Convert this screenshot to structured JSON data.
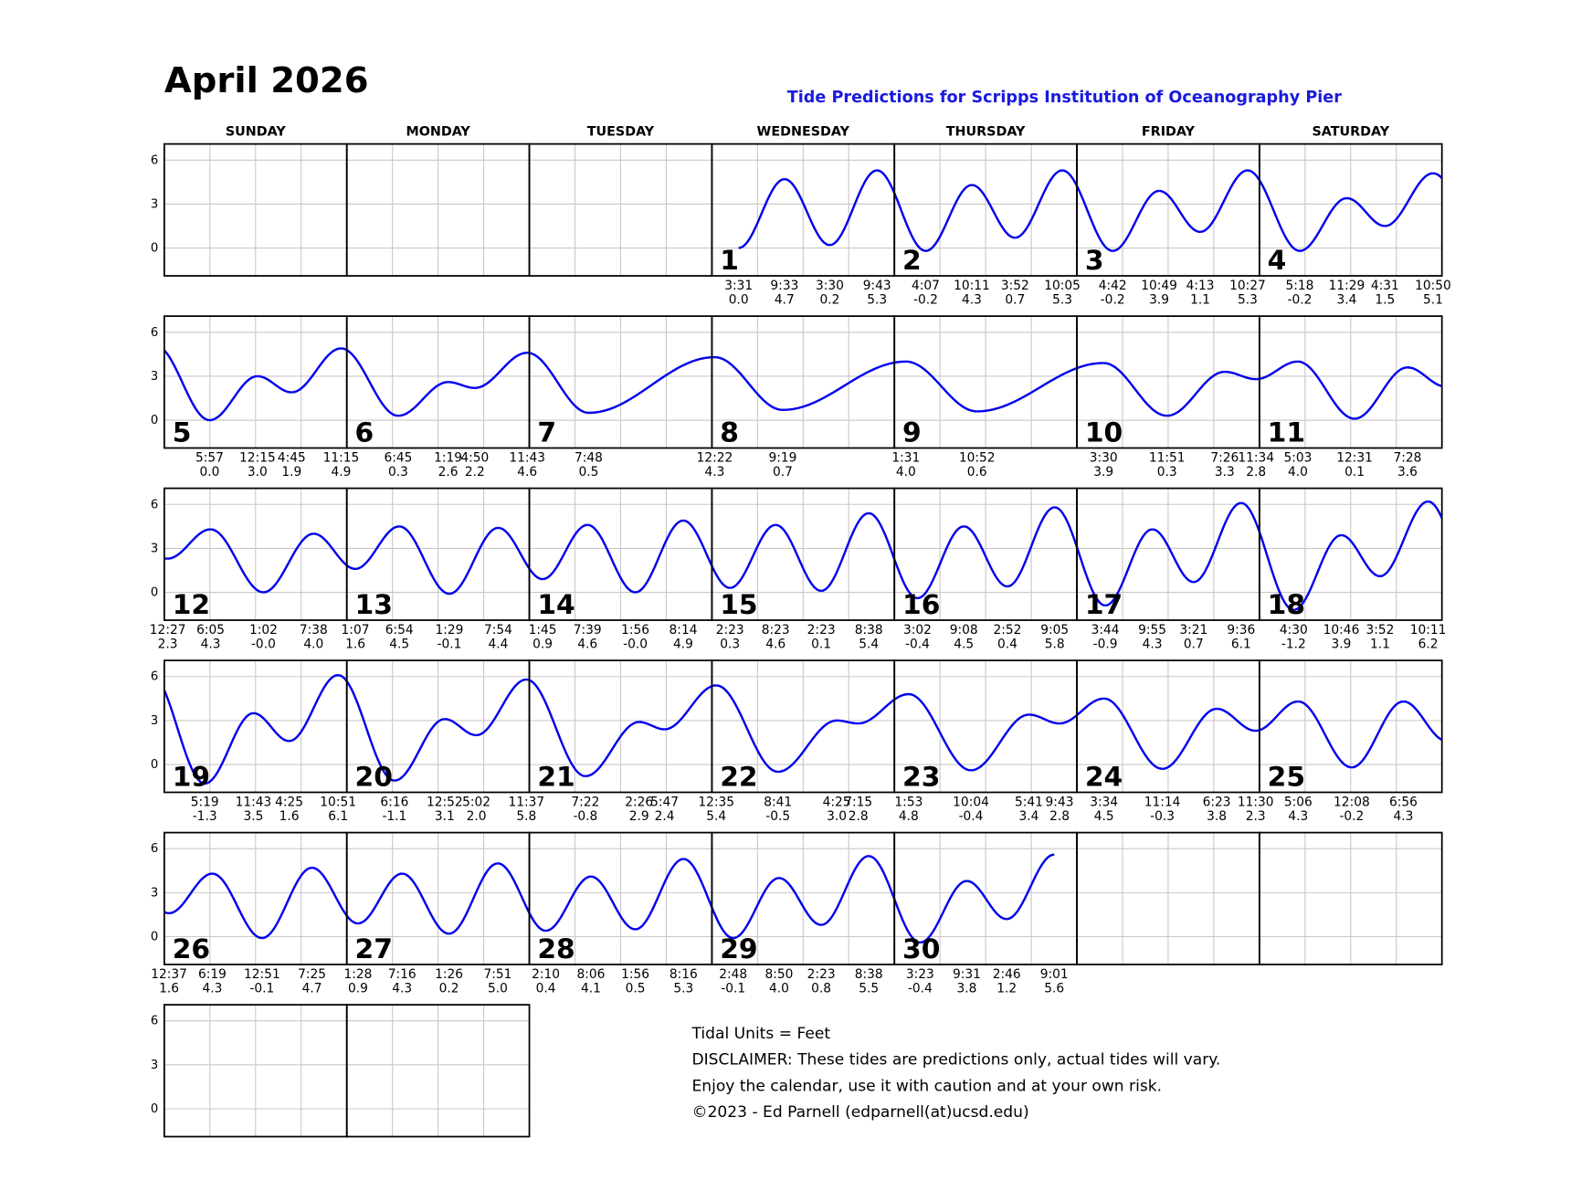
{
  "header": {
    "title": "April 2026",
    "subtitle": "Tide Predictions for Scripps Institution of Oceanography Pier"
  },
  "weekdays": [
    "SUNDAY",
    "MONDAY",
    "TUESDAY",
    "WEDNESDAY",
    "THURSDAY",
    "FRIDAY",
    "SATURDAY"
  ],
  "chart_data": {
    "type": "tide-calendar",
    "ylim": [
      -1.9,
      7.1
    ],
    "yticks": [
      0,
      3,
      6
    ],
    "color": "#0000ee",
    "grid": true,
    "days": [
      {
        "day": 1,
        "times": [
          "3:31",
          "9:33",
          "3:30",
          "9:43"
        ],
        "heights": [
          0.0,
          4.7,
          0.2,
          5.3
        ],
        "height_labels": [
          "0.0",
          "4.7",
          "0.2",
          "5.3"
        ]
      },
      {
        "day": 2,
        "times": [
          "4:07",
          "10:11",
          "3:52",
          "10:05"
        ],
        "heights": [
          -0.2,
          4.3,
          0.7,
          5.3
        ],
        "height_labels": [
          "-0.2",
          "4.3",
          "0.7",
          "5.3"
        ]
      },
      {
        "day": 3,
        "times": [
          "4:42",
          "10:49",
          "4:13",
          "10:27"
        ],
        "heights": [
          -0.2,
          3.9,
          1.1,
          5.3
        ],
        "height_labels": [
          "-0.2",
          "3.9",
          "1.1",
          "5.3"
        ]
      },
      {
        "day": 4,
        "times": [
          "5:18",
          "11:29",
          "4:31",
          "10:50"
        ],
        "heights": [
          -0.2,
          3.4,
          1.5,
          5.1
        ],
        "height_labels": [
          "-0.2",
          "3.4",
          "1.5",
          "5.1"
        ]
      },
      {
        "day": 5,
        "times": [
          "5:57",
          "12:15",
          "4:45",
          "11:15"
        ],
        "heights": [
          0.0,
          3.0,
          1.9,
          4.9
        ],
        "height_labels": [
          "0.0",
          "3.0",
          "1.9",
          "4.9"
        ]
      },
      {
        "day": 6,
        "times": [
          "6:45",
          "1:19",
          "4:50",
          "11:43"
        ],
        "heights": [
          0.3,
          2.6,
          2.2,
          4.6
        ],
        "height_labels": [
          "0.3",
          "2.6",
          "2.2",
          "4.6"
        ]
      },
      {
        "day": 7,
        "times": [
          "7:48"
        ],
        "heights": [
          0.5
        ],
        "height_labels": [
          "0.5"
        ]
      },
      {
        "day": 8,
        "times": [
          "12:22",
          "9:19"
        ],
        "heights": [
          4.3,
          0.7
        ],
        "height_labels": [
          "4.3",
          "0.7"
        ]
      },
      {
        "day": 9,
        "times": [
          "1:31",
          "10:52"
        ],
        "heights": [
          4.0,
          0.6
        ],
        "height_labels": [
          "4.0",
          "0.6"
        ]
      },
      {
        "day": 10,
        "times": [
          "3:30",
          "11:51",
          "7:26",
          "11:34"
        ],
        "heights": [
          3.9,
          0.3,
          3.3,
          2.8
        ],
        "height_labels": [
          "3.9",
          "0.3",
          "3.3",
          "2.8"
        ]
      },
      {
        "day": 11,
        "times": [
          "5:03",
          "12:31",
          "7:28"
        ],
        "heights": [
          4.0,
          0.1,
          3.6
        ],
        "height_labels": [
          "4.0",
          "0.1",
          "3.6"
        ]
      },
      {
        "day": 12,
        "times": [
          "12:27",
          "6:05",
          "1:02",
          "7:38"
        ],
        "heights": [
          2.3,
          4.3,
          -0.0,
          4.0
        ],
        "height_labels": [
          "2.3",
          "4.3",
          "-0.0",
          "4.0"
        ]
      },
      {
        "day": 13,
        "times": [
          "1:07",
          "6:54",
          "1:29",
          "7:54"
        ],
        "heights": [
          1.6,
          4.5,
          -0.1,
          4.4
        ],
        "height_labels": [
          "1.6",
          "4.5",
          "-0.1",
          "4.4"
        ]
      },
      {
        "day": 14,
        "times": [
          "1:45",
          "7:39",
          "1:56",
          "8:14"
        ],
        "heights": [
          0.9,
          4.6,
          -0.0,
          4.9
        ],
        "height_labels": [
          "0.9",
          "4.6",
          "-0.0",
          "4.9"
        ]
      },
      {
        "day": 15,
        "times": [
          "2:23",
          "8:23",
          "2:23",
          "8:38"
        ],
        "heights": [
          0.3,
          4.6,
          0.1,
          5.4
        ],
        "height_labels": [
          "0.3",
          "4.6",
          "0.1",
          "5.4"
        ]
      },
      {
        "day": 16,
        "times": [
          "3:02",
          "9:08",
          "2:52",
          "9:05"
        ],
        "heights": [
          -0.4,
          4.5,
          0.4,
          5.8
        ],
        "height_labels": [
          "-0.4",
          "4.5",
          "0.4",
          "5.8"
        ]
      },
      {
        "day": 17,
        "times": [
          "3:44",
          "9:55",
          "3:21",
          "9:36"
        ],
        "heights": [
          -0.9,
          4.3,
          0.7,
          6.1
        ],
        "height_labels": [
          "-0.9",
          "4.3",
          "0.7",
          "6.1"
        ]
      },
      {
        "day": 18,
        "times": [
          "4:30",
          "10:46",
          "3:52",
          "10:11"
        ],
        "heights": [
          -1.2,
          3.9,
          1.1,
          6.2
        ],
        "height_labels": [
          "-1.2",
          "3.9",
          "1.1",
          "6.2"
        ]
      },
      {
        "day": 19,
        "times": [
          "5:19",
          "11:43",
          "4:25",
          "10:51"
        ],
        "heights": [
          -1.3,
          3.5,
          1.6,
          6.1
        ],
        "height_labels": [
          "-1.3",
          "3.5",
          "1.6",
          "6.1"
        ]
      },
      {
        "day": 20,
        "times": [
          "6:16",
          "12:52",
          "5:02",
          "11:37"
        ],
        "heights": [
          -1.1,
          3.1,
          2.0,
          5.8
        ],
        "height_labels": [
          "-1.1",
          "3.1",
          "2.0",
          "5.8"
        ]
      },
      {
        "day": 21,
        "times": [
          "7:22",
          "2:26",
          "5:47"
        ],
        "heights": [
          -0.8,
          2.9,
          2.4
        ],
        "height_labels": [
          "-0.8",
          "2.9",
          "2.4"
        ]
      },
      {
        "day": 22,
        "times": [
          "12:35",
          "8:41",
          "4:25",
          "7:15"
        ],
        "heights": [
          5.4,
          -0.5,
          3.0,
          2.8
        ],
        "height_labels": [
          "5.4",
          "-0.5",
          "3.0",
          "2.8"
        ]
      },
      {
        "day": 23,
        "times": [
          "1:53",
          "10:04",
          "5:41",
          "9:43"
        ],
        "heights": [
          4.8,
          -0.4,
          3.4,
          2.8
        ],
        "height_labels": [
          "4.8",
          "-0.4",
          "3.4",
          "2.8"
        ]
      },
      {
        "day": 24,
        "times": [
          "3:34",
          "11:14",
          "6:23",
          "11:30"
        ],
        "heights": [
          4.5,
          -0.3,
          3.8,
          2.3
        ],
        "height_labels": [
          "4.5",
          "-0.3",
          "3.8",
          "2.3"
        ]
      },
      {
        "day": 25,
        "times": [
          "5:06",
          "12:08",
          "6:56"
        ],
        "heights": [
          4.3,
          -0.2,
          4.3
        ],
        "height_labels": [
          "4.3",
          "-0.2",
          "4.3"
        ]
      },
      {
        "day": 26,
        "times": [
          "12:37",
          "6:19",
          "12:51",
          "7:25"
        ],
        "heights": [
          1.6,
          4.3,
          -0.1,
          4.7
        ],
        "height_labels": [
          "1.6",
          "4.3",
          "-0.1",
          "4.7"
        ]
      },
      {
        "day": 27,
        "times": [
          "1:28",
          "7:16",
          "1:26",
          "7:51"
        ],
        "heights": [
          0.9,
          4.3,
          0.2,
          5.0
        ],
        "height_labels": [
          "0.9",
          "4.3",
          "0.2",
          "5.0"
        ]
      },
      {
        "day": 28,
        "times": [
          "2:10",
          "8:06",
          "1:56",
          "8:16"
        ],
        "heights": [
          0.4,
          4.1,
          0.5,
          5.3
        ],
        "height_labels": [
          "0.4",
          "4.1",
          "0.5",
          "5.3"
        ]
      },
      {
        "day": 29,
        "times": [
          "2:48",
          "8:50",
          "2:23",
          "8:38"
        ],
        "heights": [
          -0.1,
          4.0,
          0.8,
          5.5
        ],
        "height_labels": [
          "-0.1",
          "4.0",
          "0.8",
          "5.5"
        ]
      },
      {
        "day": 30,
        "times": [
          "3:23",
          "9:31",
          "2:46",
          "9:01"
        ],
        "heights": [
          -0.4,
          3.8,
          1.2,
          5.6
        ],
        "height_labels": [
          "-0.4",
          "3.8",
          "1.2",
          "5.6"
        ]
      }
    ]
  },
  "footer": [
    "Tidal Units = Feet",
    "DISCLAIMER: These tides are predictions only, actual tides will vary.",
    "Enjoy the calendar, use it with caution and at your own risk.",
    "©2023 - Ed Parnell (edparnell(at)ucsd.edu)"
  ]
}
